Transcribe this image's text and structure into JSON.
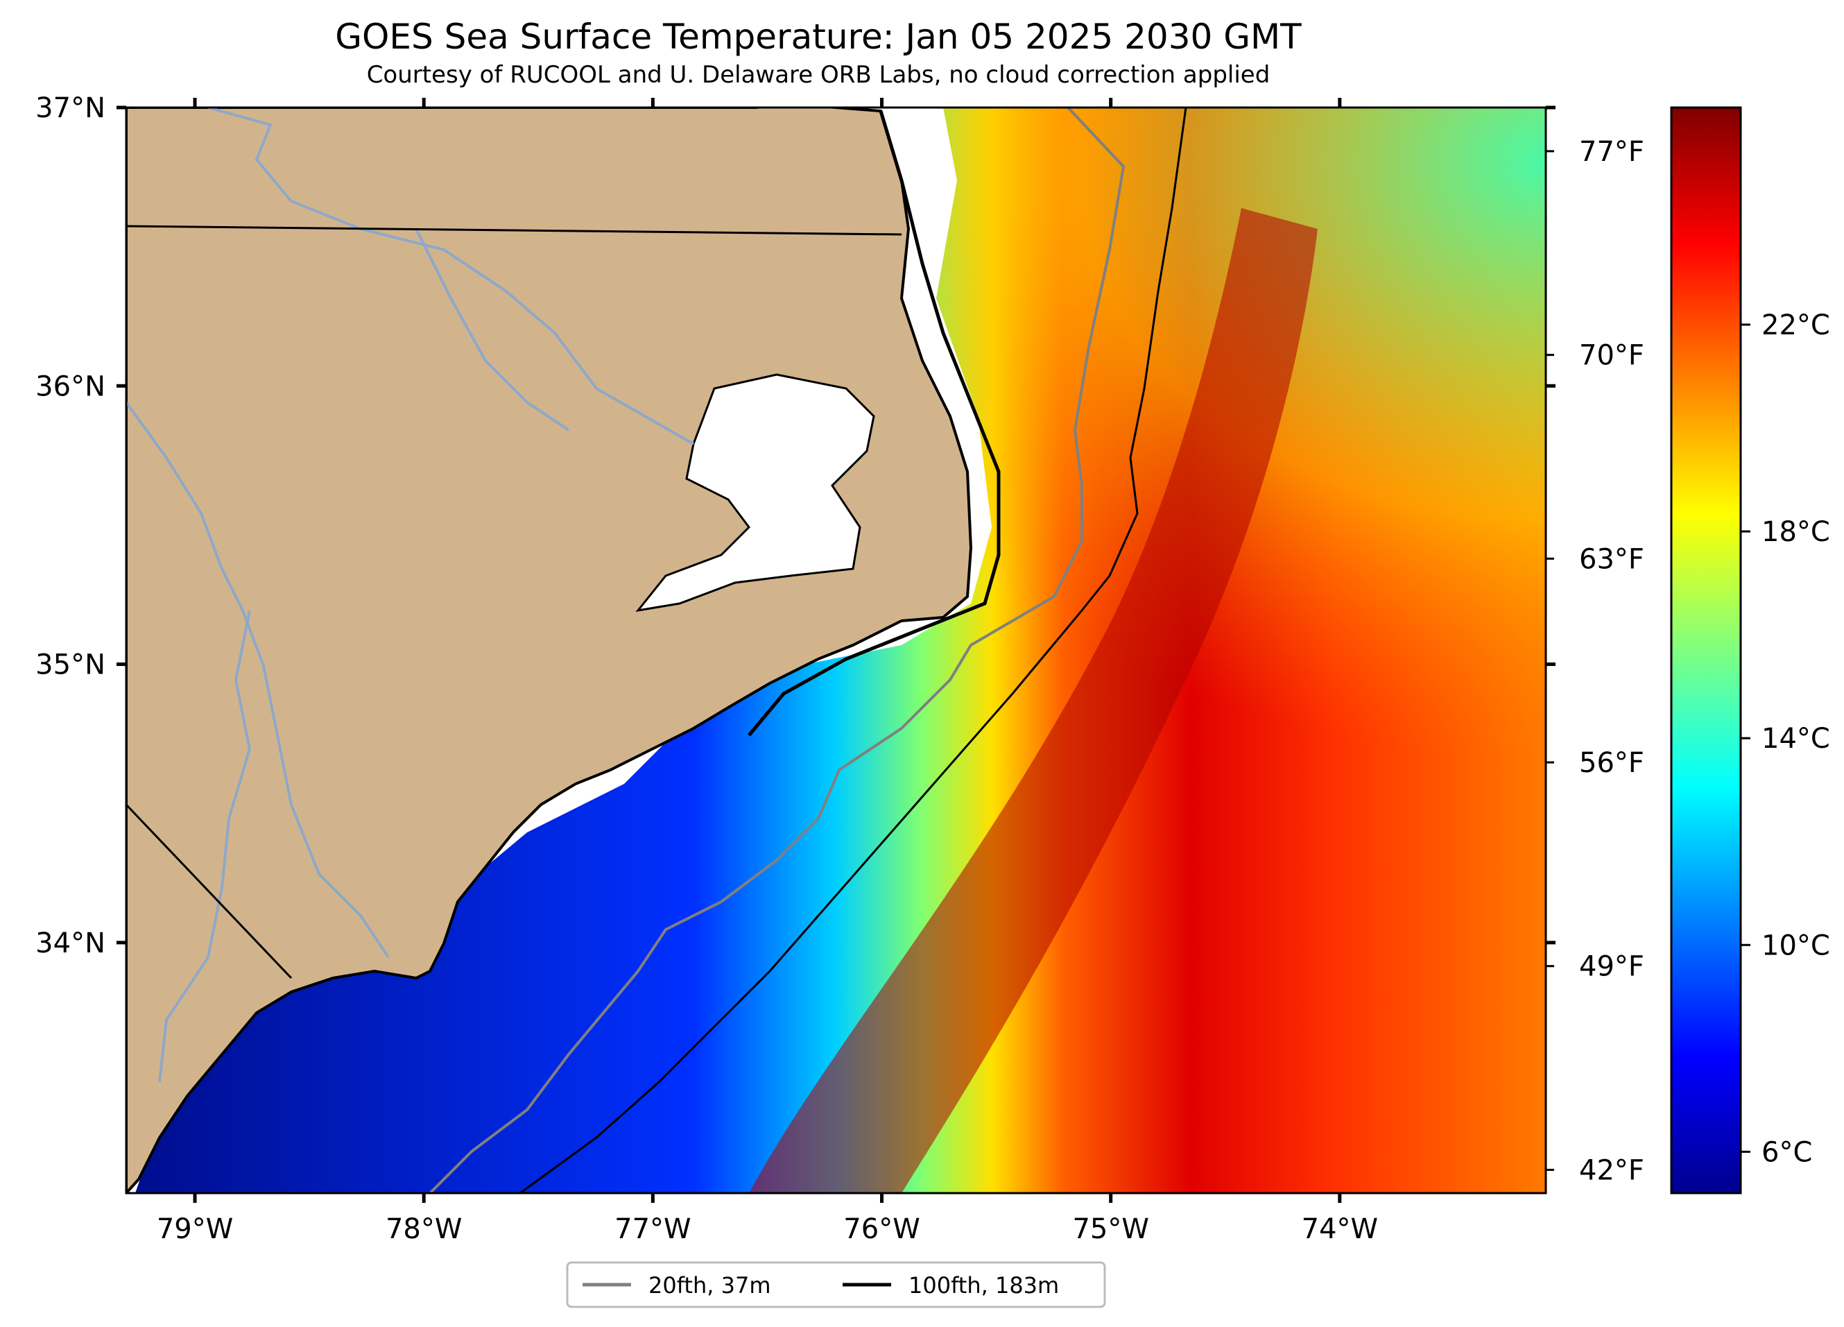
{
  "title": "GOES Sea Surface Temperature: Jan 05 2025 2030 GMT",
  "subtitle": "Courtesy of RUCOOL and U. Delaware ORB Labs, no cloud correction applied",
  "map": {
    "lat_range": [
      33.1,
      37.0
    ],
    "lon_range": [
      -79.3,
      -73.1
    ],
    "lat_ticks": [
      {
        "value": 37,
        "label": "37°N"
      },
      {
        "value": 36,
        "label": "36°N"
      },
      {
        "value": 35,
        "label": "35°N"
      },
      {
        "value": 34,
        "label": "34°N"
      }
    ],
    "lon_ticks": [
      {
        "value": -79,
        "label": "79°W"
      },
      {
        "value": -78,
        "label": "78°W"
      },
      {
        "value": -77,
        "label": "77°W"
      },
      {
        "value": -76,
        "label": "76°W"
      },
      {
        "value": -75,
        "label": "75°W"
      },
      {
        "value": -74,
        "label": "74°W"
      }
    ],
    "fahrenheit_ticks": [
      "77°F",
      "70°F",
      "63°F",
      "56°F",
      "49°F",
      "42°F"
    ],
    "colors": {
      "land": "#d2b48c",
      "coast": "#000000",
      "rivers": "#8fa8c8",
      "isobath_20": "#808080",
      "isobath_100": "#000000"
    }
  },
  "colorbar": {
    "range_c": [
      5.2,
      26.2
    ],
    "ticks": [
      "22°C",
      "18°C",
      "14°C",
      "10°C",
      "6°C"
    ],
    "colormap": "jet"
  },
  "legend": {
    "items": [
      {
        "label": "20fth, 37m",
        "color": "#808080"
      },
      {
        "label": "100fth, 183m",
        "color": "#000000"
      }
    ]
  }
}
